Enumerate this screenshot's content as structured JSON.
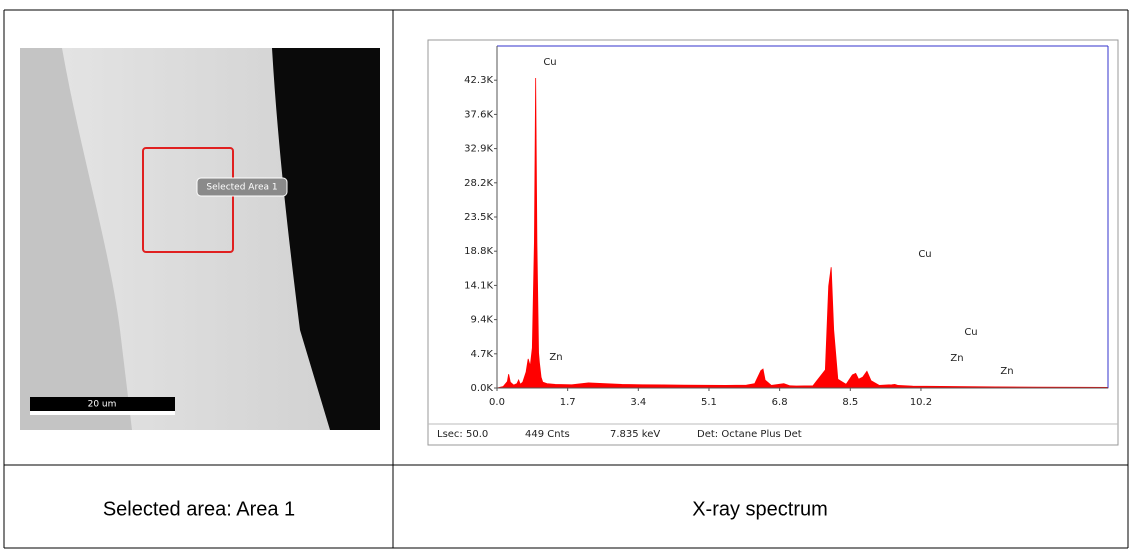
{
  "image": {
    "label": "Selected Area 1",
    "scale_bar": "20 um"
  },
  "spectrum": {
    "chart_data": {
      "type": "area",
      "color": "#ff0000",
      "x": [
        0,
        0.15,
        0.25,
        0.28,
        0.32,
        0.4,
        0.48,
        0.52,
        0.56,
        0.62,
        0.7,
        0.75,
        0.8,
        0.85,
        0.9,
        0.93,
        0.96,
        1.0,
        1.02,
        1.06,
        1.1,
        1.2,
        1.4,
        1.8,
        2.2,
        2.6,
        3.0,
        3.5,
        4.0,
        4.5,
        5.0,
        5.5,
        6.0,
        6.2,
        6.35,
        6.4,
        6.45,
        6.6,
        6.9,
        7.05,
        7.2,
        7.6,
        7.9,
        7.98,
        8.04,
        8.1,
        8.2,
        8.4,
        8.55,
        8.63,
        8.7,
        8.8,
        8.9,
        9.0,
        9.2,
        9.5,
        9.57,
        9.65,
        10.0,
        11,
        12,
        13,
        14,
        14.7
      ],
      "values": [
        0,
        200,
        900,
        1900,
        800,
        400,
        600,
        1100,
        500,
        800,
        2200,
        4000,
        3000,
        5500,
        20000,
        42600,
        20000,
        4800,
        3500,
        1500,
        800,
        600,
        500,
        450,
        700,
        600,
        500,
        450,
        420,
        400,
        380,
        350,
        400,
        600,
        2400,
        2600,
        1100,
        350,
        600,
        300,
        280,
        300,
        2500,
        14000,
        16600,
        8000,
        1200,
        500,
        1800,
        2000,
        1200,
        1500,
        2300,
        1000,
        350,
        450,
        500,
        350,
        250,
        200,
        150,
        120,
        100,
        80
      ],
      "xlim": [
        0,
        14.7
      ],
      "ylim": [
        0,
        47000
      ],
      "xticks": [
        {
          "value": 0,
          "label": "0.0"
        },
        1.7,
        3.4,
        5.1,
        6.8,
        8.5,
        10.2
      ],
      "yticks": [
        {
          "value": 0,
          "label": "0.0K"
        },
        {
          "value": 4700,
          "label": "4.7K"
        },
        {
          "value": 9400,
          "label": "9.4K"
        },
        {
          "value": 14100,
          "label": "14.1K"
        },
        {
          "value": 18800,
          "label": "18.8K"
        },
        {
          "value": 23500,
          "label": "23.5K"
        },
        {
          "value": 28200,
          "label": "28.2K"
        },
        {
          "value": 32900,
          "label": "32.9K"
        },
        {
          "value": 37600,
          "label": "37.6K"
        },
        {
          "value": 42300,
          "label": "42.3K"
        }
      ],
      "peak_labels": [
        "Cu",
        "Zn",
        "Cu",
        "Cu",
        "Zn",
        "Zn"
      ]
    }
  },
  "status": [
    "Lsec: 50.0",
    "449 Cnts",
    "7.835 keV",
    "Det: Octane Plus Det"
  ],
  "captions": [
    "Selected area: Area 1",
    "X-ray spectrum"
  ]
}
